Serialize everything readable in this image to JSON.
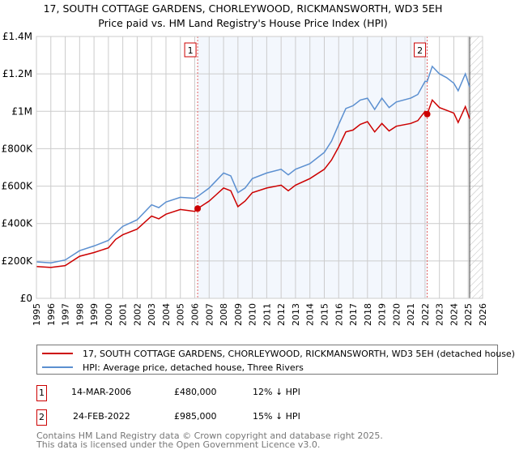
{
  "chart_data": {
    "type": "line",
    "title": "17, SOUTH COTTAGE GARDENS, CHORLEYWOOD, RICKMANSWORTH, WD3 5EH",
    "subtitle": "Price paid vs. HM Land Registry's House Price Index (HPI)",
    "xlim": [
      1995,
      2026
    ],
    "ylim": [
      0,
      1400000
    ],
    "yticks": [
      {
        "v": 0,
        "label": "£0"
      },
      {
        "v": 200000,
        "label": "£200K"
      },
      {
        "v": 400000,
        "label": "£400K"
      },
      {
        "v": 600000,
        "label": "£600K"
      },
      {
        "v": 800000,
        "label": "£800K"
      },
      {
        "v": 1000000,
        "label": "£1M"
      },
      {
        "v": 1200000,
        "label": "£1.2M"
      },
      {
        "v": 1400000,
        "label": "£1.4M"
      }
    ],
    "xticks": [
      1995,
      1996,
      1997,
      1998,
      1999,
      2000,
      2001,
      2002,
      2003,
      2004,
      2005,
      2006,
      2007,
      2008,
      2009,
      2010,
      2011,
      2012,
      2013,
      2014,
      2015,
      2016,
      2017,
      2018,
      2019,
      2020,
      2021,
      2022,
      2023,
      2024,
      2025,
      2026
    ],
    "grid": true,
    "shaded_range": [
      2006.2,
      2022.15
    ],
    "hatched_from": 2025.1,
    "series": [
      {
        "name": "17, SOUTH COTTAGE GARDENS, CHORLEYWOOD, RICKMANSWORTH, WD3 5EH (detached house)",
        "color": "#cc0000",
        "x": [
          1995,
          1996,
          1997,
          1998,
          1999,
          2000,
          2000.5,
          2001,
          2002,
          2003,
          2003.5,
          2004,
          2005,
          2006,
          2006.2,
          2007,
          2007.5,
          2008,
          2008.5,
          2009,
          2009.5,
          2010,
          2011,
          2012,
          2012.5,
          2013,
          2014,
          2015,
          2015.5,
          2016,
          2016.5,
          2017,
          2017.5,
          2018,
          2018.5,
          2019,
          2019.5,
          2020,
          2021,
          2021.5,
          2022,
          2022.15,
          2022.5,
          2023,
          2023.5,
          2024,
          2024.3,
          2024.8,
          2025.1
        ],
        "y": [
          170000,
          165000,
          175000,
          225000,
          245000,
          270000,
          315000,
          340000,
          370000,
          440000,
          425000,
          450000,
          475000,
          465000,
          480000,
          520000,
          555000,
          590000,
          575000,
          490000,
          520000,
          565000,
          590000,
          605000,
          575000,
          605000,
          640000,
          690000,
          740000,
          810000,
          890000,
          900000,
          930000,
          945000,
          890000,
          935000,
          895000,
          920000,
          935000,
          950000,
          1000000,
          985000,
          1060000,
          1020000,
          1005000,
          990000,
          940000,
          1025000,
          960000
        ]
      },
      {
        "name": "HPI: Average price, detached house, Three Rivers",
        "color": "#5b8fd0",
        "x": [
          1995,
          1996,
          1997,
          1998,
          1999,
          2000,
          2000.5,
          2001,
          2002,
          2003,
          2003.5,
          2004,
          2005,
          2006,
          2006.2,
          2007,
          2007.5,
          2008,
          2008.5,
          2009,
          2009.5,
          2010,
          2011,
          2012,
          2012.5,
          2013,
          2014,
          2015,
          2015.5,
          2016,
          2016.5,
          2017,
          2017.5,
          2018,
          2018.5,
          2019,
          2019.5,
          2020,
          2021,
          2021.5,
          2022,
          2022.15,
          2022.5,
          2023,
          2023.5,
          2024,
          2024.3,
          2024.8,
          2025.1
        ],
        "y": [
          195000,
          190000,
          205000,
          255000,
          280000,
          310000,
          350000,
          385000,
          420000,
          500000,
          485000,
          515000,
          540000,
          535000,
          545000,
          590000,
          630000,
          670000,
          655000,
          565000,
          590000,
          640000,
          670000,
          690000,
          660000,
          690000,
          720000,
          780000,
          840000,
          930000,
          1015000,
          1030000,
          1060000,
          1070000,
          1010000,
          1070000,
          1020000,
          1050000,
          1070000,
          1090000,
          1160000,
          1160000,
          1240000,
          1200000,
          1180000,
          1150000,
          1110000,
          1200000,
          1130000
        ]
      }
    ],
    "annotations": [
      {
        "label": "1",
        "x": 2006.2,
        "y": 480000
      },
      {
        "label": "2",
        "x": 2022.15,
        "y": 985000
      }
    ]
  },
  "legend": {
    "property": "17, SOUTH COTTAGE GARDENS, CHORLEYWOOD, RICKMANSWORTH, WD3 5EH (detached house)",
    "hpi": "HPI: Average price, detached house, Three Rivers"
  },
  "transactions": [
    {
      "num": "1",
      "date": "14-MAR-2006",
      "price": "£480,000",
      "delta": "12% ↓ HPI"
    },
    {
      "num": "2",
      "date": "24-FEB-2022",
      "price": "£985,000",
      "delta": "15% ↓ HPI"
    }
  ],
  "footer": {
    "line1": "Contains HM Land Registry data © Crown copyright and database right 2025.",
    "line2": "This data is licensed under the Open Government Licence v3.0."
  }
}
